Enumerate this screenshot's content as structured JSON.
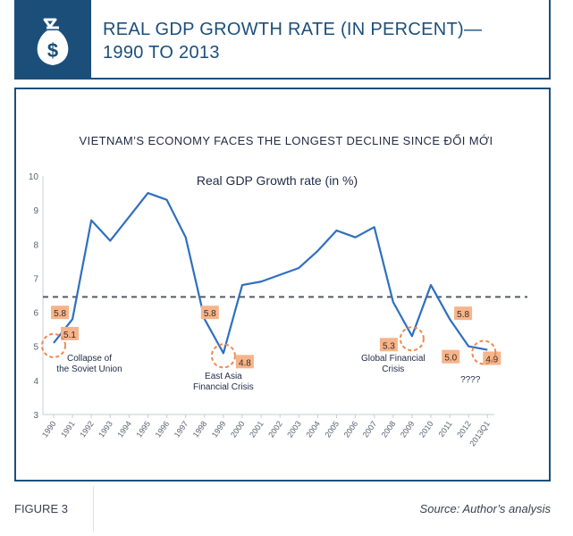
{
  "header": {
    "title_line1": "REAL GDP GROWTH RATE (IN PERCENT)—",
    "title_line2": "1990 TO 2013",
    "icon": "money-bag-icon",
    "accent_color": "#1b4f7a"
  },
  "chart_data": {
    "type": "line",
    "heading": "VIETNAM’S ECONOMY FACES THE LONGEST DECLINE SINCE ĐỔI MỚI",
    "title": "Real GDP Growth rate (in %)",
    "categories": [
      "1990",
      "1991",
      "1992",
      "1993",
      "1994",
      "1995",
      "1996",
      "1997",
      "1998",
      "1999",
      "2000",
      "2001",
      "2002",
      "2003",
      "2004",
      "2005",
      "2006",
      "2007",
      "2008",
      "2009",
      "2010",
      "2011",
      "2012",
      "2013Q1"
    ],
    "values": [
      5.1,
      5.8,
      8.7,
      8.1,
      8.8,
      9.5,
      9.3,
      8.2,
      5.8,
      4.8,
      6.8,
      6.9,
      7.1,
      7.3,
      7.8,
      8.4,
      8.2,
      8.5,
      6.3,
      5.3,
      6.8,
      5.8,
      5.0,
      4.9
    ],
    "ylim": [
      3,
      10
    ],
    "yticks": [
      "3",
      "4",
      "5",
      "6",
      "7",
      "8",
      "9",
      "10"
    ],
    "average_line": 6.45,
    "line_color": "#2f6fc0",
    "label_color": "#f6b48b",
    "data_labels": [
      {
        "index": 0,
        "text": "5.1"
      },
      {
        "index": 1,
        "text": "5.8"
      },
      {
        "index": 8,
        "text": "5.8"
      },
      {
        "index": 9,
        "text": "4.8"
      },
      {
        "index": 19,
        "text": "5.3"
      },
      {
        "index": 21,
        "text": "5.8"
      },
      {
        "index": 22,
        "text": "5.0"
      },
      {
        "index": 23,
        "text": "4.9"
      }
    ],
    "annotations": [
      {
        "lines": [
          "Collapse of",
          "the Soviet Union"
        ]
      },
      {
        "lines": [
          "East Asia",
          "Financial Crisis"
        ]
      },
      {
        "lines": [
          "Global Financial",
          "Crisis"
        ]
      },
      {
        "lines": [
          "????"
        ]
      }
    ]
  },
  "footer": {
    "figure_label": "FIGURE 3",
    "source": "Source: Author’s analysis"
  }
}
